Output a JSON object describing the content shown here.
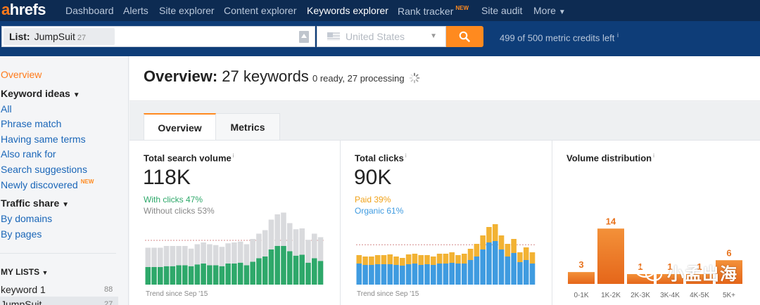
{
  "app": {
    "logo_first": "a",
    "logo_rest": "hrefs",
    "accent": "#ff8a1f",
    "nav_bg": "#0d2b52"
  },
  "nav": {
    "items": [
      {
        "label": "Dashboard"
      },
      {
        "label": "Alerts"
      },
      {
        "label": "Site explorer"
      },
      {
        "label": "Content explorer"
      },
      {
        "label": "Keywords explorer",
        "active": true
      },
      {
        "label": "Rank tracker",
        "badge": "NEW"
      },
      {
        "label": "Site audit"
      },
      {
        "label": "More"
      }
    ]
  },
  "search": {
    "list_label": "List:",
    "list_name": "JumpSuit",
    "list_count": "27",
    "country": "United States",
    "credits": "499 of 500 metric credits left",
    "credits_info": "i"
  },
  "sidebar": {
    "overview": "Overview",
    "keyword_ideas": "Keyword ideas",
    "items_ideas": [
      {
        "label": "All"
      },
      {
        "label": "Phrase match"
      },
      {
        "label": "Having same terms"
      },
      {
        "label": "Also rank for"
      },
      {
        "label": "Search suggestions"
      },
      {
        "label": "Newly discovered",
        "badge": "NEW"
      }
    ],
    "traffic_share": "Traffic share",
    "items_traffic": [
      {
        "label": "By domains"
      },
      {
        "label": "By pages"
      }
    ],
    "my_lists": "MY LISTS",
    "lists": [
      {
        "label": "keyword 1",
        "count": "88"
      },
      {
        "label": "JumpSuit",
        "count": "27"
      }
    ]
  },
  "main": {
    "title_bold": "Overview:",
    "title_rest": "27 keywords",
    "status": "0 ready, 27 processing",
    "tabs": [
      {
        "label": "Overview",
        "active": true
      },
      {
        "label": "Metrics"
      }
    ]
  },
  "cards": {
    "volume": {
      "title": "Total search volume",
      "info": "i",
      "value": "118K",
      "line1": "With clicks 47%",
      "line2": "Without clicks 53%",
      "trend": "Trend since Sep '15"
    },
    "clicks": {
      "title": "Total clicks",
      "info": "i",
      "value": "90K",
      "line1": "Paid 39%",
      "line2": "Organic 61%",
      "trend": "Trend since Sep '15"
    },
    "distribution": {
      "title": "Volume distribution",
      "info": "i"
    }
  },
  "chart_data": [
    {
      "type": "bar",
      "stacked": true,
      "series": [
        {
          "name": "With clicks",
          "color": "#2ea86a",
          "values": [
            20,
            20,
            20,
            21,
            21,
            22,
            22,
            21,
            23,
            24,
            22,
            22,
            21,
            24,
            24,
            25,
            22,
            26,
            30,
            32,
            40,
            44,
            44,
            38,
            33,
            34,
            25,
            30,
            27
          ]
        },
        {
          "name": "Without clicks",
          "color": "#d9dadd",
          "values": [
            22,
            22,
            22,
            23,
            23,
            22,
            22,
            20,
            23,
            24,
            24,
            23,
            22,
            23,
            24,
            24,
            24,
            26,
            28,
            30,
            34,
            36,
            38,
            32,
            30,
            30,
            26,
            28,
            27
          ]
        }
      ],
      "ylim": [
        0,
        80
      ],
      "color_green": "#2ea86a",
      "color_grey": "#d9dadd"
    },
    {
      "type": "bar",
      "stacked": true,
      "series": [
        {
          "name": "Organic",
          "color": "#3f9be0",
          "values": [
            30,
            28,
            28,
            29,
            29,
            29,
            28,
            27,
            29,
            30,
            28,
            29,
            28,
            30,
            30,
            31,
            30,
            30,
            35,
            40,
            50,
            60,
            62,
            50,
            40,
            45,
            32,
            35,
            30
          ]
        },
        {
          "name": "Paid",
          "color": "#f2b233",
          "values": [
            12,
            12,
            12,
            13,
            13,
            14,
            12,
            11,
            14,
            14,
            14,
            13,
            12,
            14,
            14,
            15,
            12,
            14,
            16,
            18,
            20,
            22,
            24,
            20,
            18,
            20,
            14,
            18,
            16
          ]
        }
      ],
      "ylim": [
        0,
        90
      ],
      "color_blue": "#3f9be0",
      "color_yellow": "#f2b233"
    },
    {
      "type": "bar",
      "categories": [
        "0-1K",
        "1K-2K",
        "2K-3K",
        "3K-4K",
        "4K-5K",
        "5K+"
      ],
      "values": [
        3,
        14,
        1,
        1,
        1,
        6
      ],
      "ylim": [
        0,
        16
      ],
      "color": "#f07c1e"
    }
  ],
  "watermark": {
    "text": "小孟出海",
    "icon": "wechat-icon"
  }
}
